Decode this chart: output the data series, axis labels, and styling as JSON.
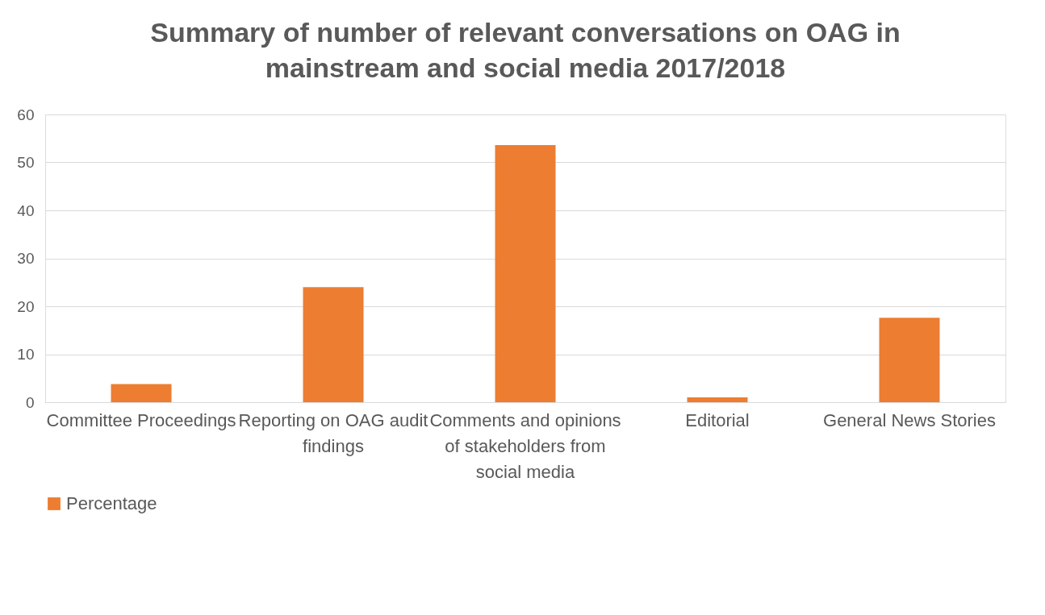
{
  "chart_data": {
    "type": "bar",
    "title": "Summary of number of  relevant conversations on OAG in mainstream and social media 2017/2018",
    "categories": [
      "Committee Proceedings",
      "Reporting on OAG audit findings",
      "Comments and opinions of stakeholders from social media",
      "Editorial",
      "General News Stories"
    ],
    "series": [
      {
        "name": "Percentage",
        "color": "#ed7d31",
        "values": [
          3.8,
          24.0,
          53.6,
          1.0,
          17.6
        ]
      }
    ],
    "ylim": [
      0,
      60
    ],
    "yticks": [
      0,
      10,
      20,
      30,
      40,
      50,
      60
    ],
    "grid": "y",
    "legend": "bottom"
  }
}
